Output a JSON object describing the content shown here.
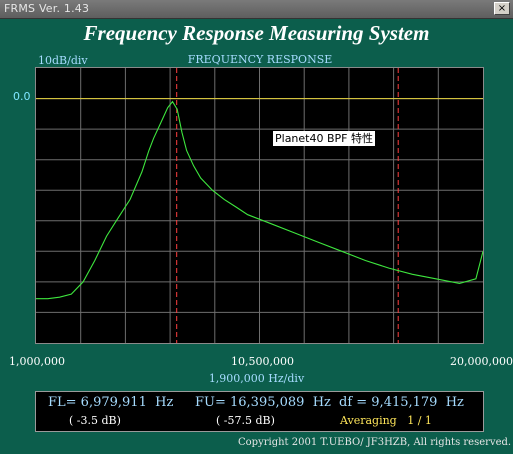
{
  "window": {
    "title": "FRMS   Ver. 1.43",
    "close_label": "×"
  },
  "heading": "Frequency Response Measuring System",
  "plot": {
    "title": "FREQUENCY RESPONSE",
    "y_scale_label": "10dB/div",
    "ref_level_label": "0.0",
    "annotation": "Planet40 BPF 特性",
    "x_start_label": "1,000,000",
    "x_center_label": "10,500,000",
    "x_end_label": "20,000,000",
    "x_div_label": "1,900,000  Hz/div"
  },
  "readout": {
    "fl": "FL= 6,979,911  Hz",
    "fl_db": "( -3.5 dB)",
    "fu": "FU= 16,395,089  Hz",
    "fu_db": "( -57.5 dB)",
    "df": "df = 9,415,179  Hz",
    "averaging": "Averaging   1 / 1"
  },
  "copyright": "Copyright 2001 T.UEBO/ JF3HZB, All rights reserved.",
  "colors": {
    "background": "#0c5e4c",
    "trace": "#3ee63e",
    "grid": "#6e6e6e",
    "reference": "#e6d23c",
    "markers": "#ff4040",
    "label_blue": "#a6dcff"
  },
  "chart_data": {
    "type": "line",
    "title": "FREQUENCY RESPONSE",
    "xlabel": "1,900,000  Hz/div",
    "ylabel": "10dB/div",
    "xlim": [
      1000000,
      20000000
    ],
    "ylim": [
      -80,
      10
    ],
    "reference_level_db": 0.0,
    "grid": true,
    "markers_hz": [
      6979911,
      16395089
    ],
    "series": [
      {
        "x": [
          1000000,
          1500000,
          2000000,
          2500000,
          3000000,
          3500000,
          4000000,
          4500000,
          5000000,
          5500000,
          5800000,
          6000000,
          6300000,
          6600000,
          6800000,
          7000000,
          7200000,
          7400000,
          7700000,
          8000000,
          8500000,
          9000000,
          9500000,
          10000000,
          11000000,
          12000000,
          13000000,
          14000000,
          15000000,
          16000000,
          17000000,
          18000000,
          19000000,
          19700000,
          20000000
        ],
        "y": [
          -65.5,
          -65.5,
          -65,
          -64,
          -60,
          -53,
          -45,
          -39,
          -33,
          -24,
          -17,
          -13,
          -8,
          -3,
          -1,
          -3.5,
          -11,
          -17,
          -22,
          -26,
          -30,
          -33,
          -35.5,
          -38,
          -41,
          -44,
          -47,
          -50,
          -53,
          -55.5,
          -57.5,
          -59,
          -60.5,
          -59,
          -50
        ]
      }
    ]
  }
}
